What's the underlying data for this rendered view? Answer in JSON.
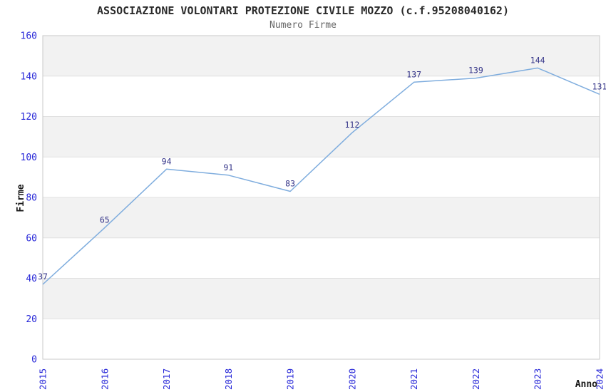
{
  "chart_data": {
    "type": "line",
    "title": "ASSOCIAZIONE VOLONTARI PROTEZIONE CIVILE MOZZO (c.f.95208040162)",
    "subtitle": "Numero Firme",
    "xlabel": "Anno",
    "ylabel": "Firme",
    "categories": [
      "2015",
      "2016",
      "2017",
      "2018",
      "2019",
      "2020",
      "2021",
      "2022",
      "2023",
      "2024"
    ],
    "values": [
      37,
      65,
      94,
      91,
      83,
      112,
      137,
      139,
      144,
      131
    ],
    "ylim": [
      0,
      160
    ],
    "yticks": [
      0,
      20,
      40,
      60,
      80,
      100,
      120,
      140,
      160
    ],
    "grid": "horizontal-bands",
    "legend_position": "none",
    "colors": {
      "line": "#7fadde",
      "data_label": "#333388",
      "tick_label": "#2727d8",
      "band": "#f2f2f2",
      "band_alt": "#ffffff",
      "grid_line": "#e0e0e0",
      "plot_border": "#c8c8c8",
      "title": "#2b2b2b",
      "subtitle": "#666666",
      "axis_title": "#1a1a1a"
    }
  }
}
